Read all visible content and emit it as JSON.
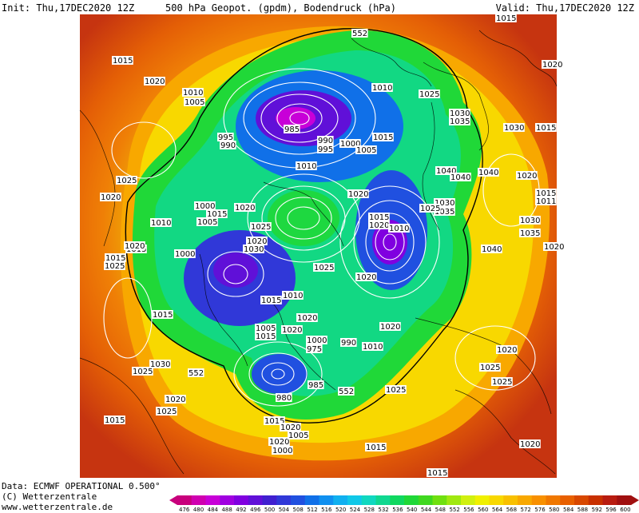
{
  "header": {
    "init": "Init: Thu,17DEC2020 12Z",
    "title": "500 hPa Geopot. (gpdm), Bodendruck (hPa)",
    "valid": "Valid: Thu,17DEC2020 12Z"
  },
  "footer": {
    "data_source": "Data: ECMWF OPERATIONAL 0.500°",
    "copyright": "(C) Wetterzentrale",
    "website": "www.wetterzentrale.de"
  },
  "legend": {
    "ticks": [
      "476",
      "480",
      "484",
      "488",
      "492",
      "496",
      "500",
      "504",
      "508",
      "512",
      "516",
      "520",
      "524",
      "528",
      "532",
      "536",
      "540",
      "544",
      "548",
      "552",
      "556",
      "560",
      "564",
      "568",
      "572",
      "576",
      "580",
      "584",
      "588",
      "592",
      "596",
      "600"
    ],
    "colors": [
      "#c8007c",
      "#d000b0",
      "#c800d8",
      "#a000e0",
      "#8000e0",
      "#6010d8",
      "#4020d0",
      "#3038d8",
      "#2050e0",
      "#1070e8",
      "#1090f0",
      "#10b0f0",
      "#10c8e8",
      "#10d8c0",
      "#10d890",
      "#10d860",
      "#20d838",
      "#40d820",
      "#70e010",
      "#a0e810",
      "#d0f010",
      "#f0f000",
      "#f8d800",
      "#f8c000",
      "#f8a800",
      "#f89000",
      "#f07800",
      "#e86000",
      "#d84800",
      "#c83000",
      "#b81c10",
      "#a01010"
    ]
  },
  "pressure_labels": [
    {
      "t": "552"
    },
    {
      "t": "1015"
    },
    {
      "t": "1020"
    },
    {
      "t": "1015"
    },
    {
      "t": "1020"
    },
    {
      "t": "1010"
    },
    {
      "t": "1005"
    },
    {
      "t": "1010"
    },
    {
      "t": "1025"
    },
    {
      "t": "1030"
    },
    {
      "t": "1035"
    },
    {
      "t": "1030"
    },
    {
      "t": "1015"
    },
    {
      "t": "985"
    },
    {
      "t": "995"
    },
    {
      "t": "990"
    },
    {
      "t": "990"
    },
    {
      "t": "995"
    },
    {
      "t": "1000"
    },
    {
      "t": "1005"
    },
    {
      "t": "1015"
    },
    {
      "t": "1025"
    },
    {
      "t": "1010"
    },
    {
      "t": "1040"
    },
    {
      "t": "1040"
    },
    {
      "t": "1040"
    },
    {
      "t": "1020"
    },
    {
      "t": "1015"
    },
    {
      "t": "1020"
    },
    {
      "t": "1020"
    },
    {
      "t": "1000"
    },
    {
      "t": "1015"
    },
    {
      "t": "1020"
    },
    {
      "t": "1010"
    },
    {
      "t": "1005"
    },
    {
      "t": "1025"
    },
    {
      "t": "1030"
    },
    {
      "t": "1035"
    },
    {
      "t": "1025"
    },
    {
      "t": "1015"
    },
    {
      "t": "1020"
    },
    {
      "t": "1010"
    },
    {
      "t": "1015"
    },
    {
      "t": "1030"
    },
    {
      "t": "1035"
    },
    {
      "t": "1040"
    },
    {
      "t": "1020"
    },
    {
      "t": "1020"
    },
    {
      "t": "1015"
    },
    {
      "t": "1025"
    },
    {
      "t": "1000"
    },
    {
      "t": "1020"
    },
    {
      "t": "1030"
    },
    {
      "t": "1025"
    },
    {
      "t": "1020"
    },
    {
      "t": "1010"
    },
    {
      "t": "1015"
    },
    {
      "t": "1020"
    },
    {
      "t": "1015"
    },
    {
      "t": "1020"
    },
    {
      "t": "1005"
    },
    {
      "t": "1015"
    },
    {
      "t": "1000"
    },
    {
      "t": "975"
    },
    {
      "t": "990"
    },
    {
      "t": "1020"
    },
    {
      "t": "1010"
    },
    {
      "t": "1030"
    },
    {
      "t": "1025"
    },
    {
      "t": "552"
    },
    {
      "t": "985"
    },
    {
      "t": "552"
    },
    {
      "t": "980"
    },
    {
      "t": "1025"
    },
    {
      "t": "1020"
    },
    {
      "t": "1025"
    },
    {
      "t": "1015"
    },
    {
      "t": "1020"
    },
    {
      "t": "1000"
    },
    {
      "t": "1005"
    },
    {
      "t": "1015"
    },
    {
      "t": "1020"
    },
    {
      "t": "1025"
    },
    {
      "t": "1020"
    },
    {
      "t": "1015"
    },
    {
      "t": "1020"
    },
    {
      "t": "1015"
    },
    {
      "t": "1011"
    },
    {
      "t": "1025"
    }
  ]
}
